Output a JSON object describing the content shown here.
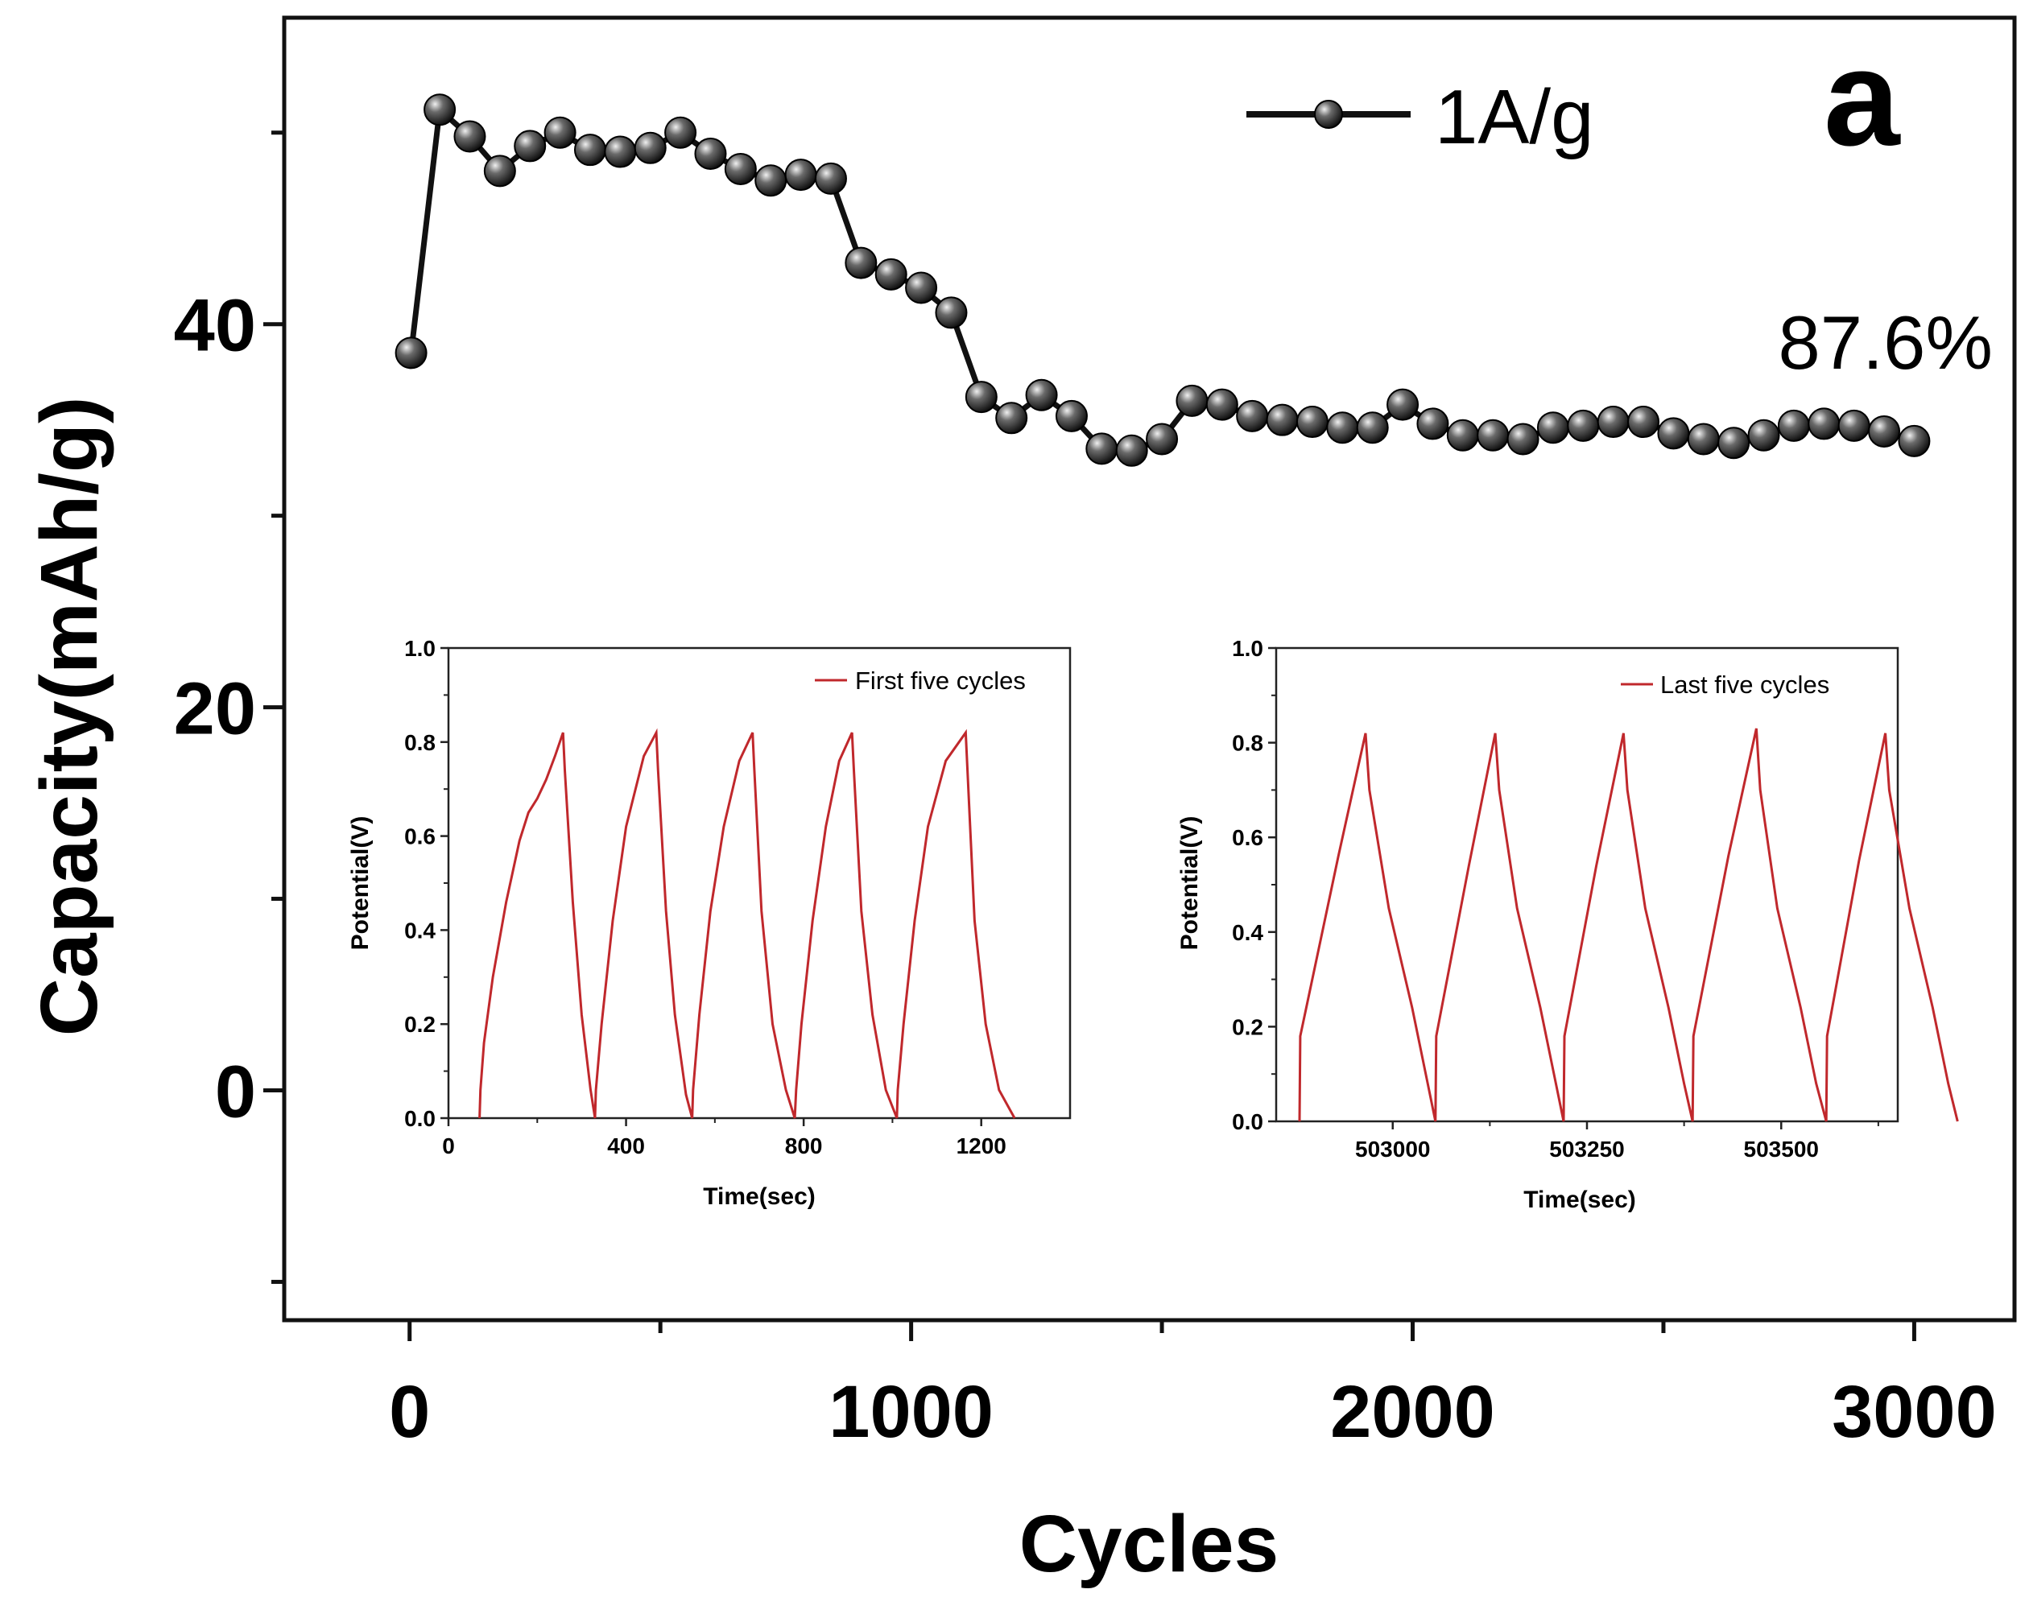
{
  "chart_data": [
    {
      "type": "line",
      "panel_letter": "a",
      "xlabel": "Cycles",
      "ylabel": "Capacity(mAh/g)",
      "xlim": [
        -250,
        3200
      ],
      "ylim": [
        -12,
        56
      ],
      "xticks": [
        0,
        1000,
        2000,
        3000
      ],
      "xtick_labels": [
        "0",
        "1000",
        "2000",
        "3000"
      ],
      "xminor_ticks": [
        500,
        1500,
        2500
      ],
      "yticks": [
        0,
        20,
        40
      ],
      "ytick_labels": [
        "0",
        "20",
        "40"
      ],
      "yminor_ticks": [
        -10,
        10,
        30,
        50
      ],
      "annotation": "87.6%",
      "legend": {
        "position": "top-right",
        "entries": [
          "1A/g"
        ]
      },
      "series": [
        {
          "name": "1A/g",
          "color": "#111111",
          "marker": "sphere",
          "x": [
            3,
            60,
            120,
            180,
            240,
            300,
            360,
            420,
            480,
            540,
            600,
            660,
            720,
            780,
            840,
            900,
            960,
            1020,
            1080,
            1140,
            1200,
            1260,
            1320,
            1380,
            1440,
            1500,
            1560,
            1620,
            1680,
            1740,
            1800,
            1860,
            1920,
            1980,
            2040,
            2100,
            2160,
            2220,
            2280,
            2340,
            2400,
            2460,
            2520,
            2580,
            2640,
            2700,
            2760,
            2820,
            2880,
            2940,
            3000
          ],
          "values": [
            38.5,
            51.2,
            49.8,
            48.0,
            49.3,
            50.0,
            49.1,
            49.0,
            49.2,
            50.0,
            48.9,
            48.1,
            47.5,
            47.8,
            47.6,
            43.2,
            42.6,
            41.9,
            40.6,
            36.2,
            35.1,
            36.3,
            35.2,
            33.5,
            33.4,
            34.0,
            36.0,
            35.8,
            35.2,
            35.0,
            34.9,
            34.6,
            34.6,
            35.8,
            34.8,
            34.2,
            34.2,
            34.0,
            34.6,
            34.7,
            34.9,
            34.9,
            34.3,
            34.0,
            33.8,
            34.2,
            34.7,
            34.8,
            34.7,
            34.4,
            33.9
          ]
        }
      ]
    },
    {
      "type": "line",
      "title": "",
      "xlabel": "Time(sec)",
      "ylabel": "Potential(V)",
      "xlim": [
        0,
        1400
      ],
      "ylim": [
        0.0,
        1.0
      ],
      "xticks": [
        0,
        400,
        800,
        1200
      ],
      "xtick_labels": [
        "0",
        "400",
        "800",
        "1200"
      ],
      "yticks": [
        0.0,
        0.2,
        0.4,
        0.6,
        0.8,
        1.0
      ],
      "ytick_labels": [
        "0.0",
        "0.2",
        "0.4",
        "0.6",
        "0.8",
        "1.0"
      ],
      "legend": {
        "position": "top-right",
        "entries": [
          "First five cycles"
        ]
      },
      "series": [
        {
          "name": "First five cycles",
          "color": "#c0282c",
          "x": [
            70,
            72,
            80,
            100,
            130,
            160,
            180,
            200,
            220,
            240,
            258,
            262,
            280,
            300,
            320,
            330,
            332,
            345,
            370,
            400,
            440,
            468,
            472,
            490,
            510,
            535,
            549,
            551,
            565,
            590,
            620,
            655,
            685,
            689,
            705,
            730,
            760,
            780,
            783,
            795,
            820,
            850,
            880,
            909,
            913,
            930,
            955,
            985,
            1010,
            1012,
            1025,
            1050,
            1080,
            1120,
            1165,
            1169,
            1185,
            1210,
            1240,
            1275
          ],
          "values": [
            0.0,
            0.06,
            0.16,
            0.3,
            0.46,
            0.59,
            0.65,
            0.68,
            0.72,
            0.77,
            0.82,
            0.74,
            0.46,
            0.22,
            0.06,
            0.0,
            0.06,
            0.2,
            0.42,
            0.62,
            0.77,
            0.82,
            0.74,
            0.44,
            0.22,
            0.05,
            0.0,
            0.06,
            0.22,
            0.44,
            0.62,
            0.76,
            0.82,
            0.74,
            0.44,
            0.2,
            0.06,
            0.0,
            0.06,
            0.2,
            0.42,
            0.62,
            0.76,
            0.82,
            0.74,
            0.44,
            0.22,
            0.06,
            0.0,
            0.06,
            0.2,
            0.42,
            0.62,
            0.76,
            0.82,
            0.74,
            0.42,
            0.2,
            0.06,
            0.0
          ]
        }
      ]
    },
    {
      "type": "line",
      "title": "",
      "xlabel": "Time(sec)",
      "ylabel": "Potential(V)",
      "xlim": [
        502850,
        503650
      ],
      "ylim": [
        0.0,
        1.0
      ],
      "xticks": [
        503000,
        503250,
        503500
      ],
      "xtick_labels": [
        "503000",
        "503250",
        "503500"
      ],
      "yticks": [
        0.0,
        0.2,
        0.4,
        0.6,
        0.8,
        1.0
      ],
      "ytick_labels": [
        "0.0",
        "0.2",
        "0.4",
        "0.6",
        "0.8",
        "1.0"
      ],
      "legend": {
        "position": "top-right",
        "entries": [
          "Last five cycles"
        ]
      },
      "series": [
        {
          "name": "Last five cycles",
          "color": "#c0282c",
          "x": [
            502880,
            502881,
            502930,
            502965,
            502970,
            502995,
            503025,
            503045,
            503055,
            503056,
            503098,
            503132,
            503137,
            503160,
            503190,
            503210,
            503220,
            503221,
            503262,
            503297,
            503302,
            503325,
            503355,
            503375,
            503386,
            503387,
            503432,
            503468,
            503473,
            503495,
            503525,
            503545,
            503558,
            503559,
            503600,
            503634,
            503639,
            503665,
            503695,
            503715,
            503727
          ],
          "values": [
            0.0,
            0.18,
            0.56,
            0.82,
            0.7,
            0.45,
            0.24,
            0.08,
            0.0,
            0.18,
            0.54,
            0.82,
            0.7,
            0.45,
            0.24,
            0.08,
            0.0,
            0.18,
            0.54,
            0.82,
            0.7,
            0.45,
            0.24,
            0.08,
            0.0,
            0.18,
            0.56,
            0.83,
            0.7,
            0.45,
            0.24,
            0.08,
            0.0,
            0.18,
            0.55,
            0.82,
            0.7,
            0.45,
            0.24,
            0.08,
            0.0
          ]
        }
      ]
    }
  ]
}
